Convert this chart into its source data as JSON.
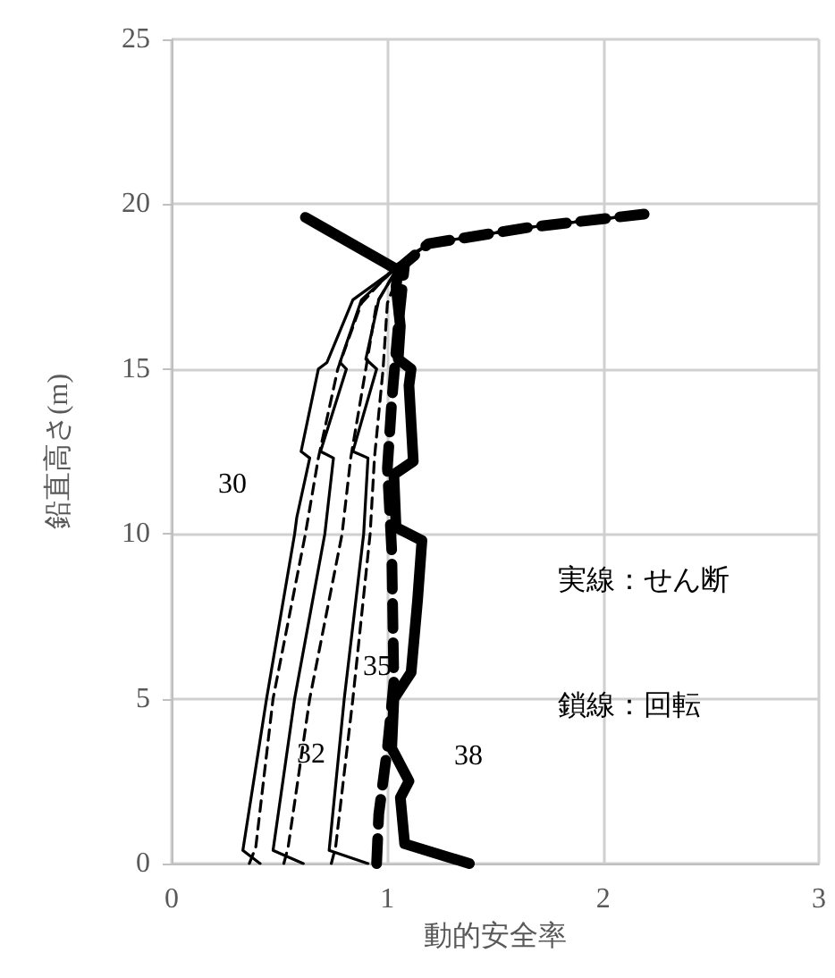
{
  "chart_data": {
    "type": "line",
    "xlabel": "動的安全率",
    "ylabel": "鉛直高さ(m)",
    "xlim": [
      0,
      3
    ],
    "xticks": [
      0,
      1,
      2,
      3
    ],
    "ylim": [
      0,
      25
    ],
    "yticks": [
      0,
      5,
      10,
      15,
      20,
      25
    ],
    "grid": true,
    "marker": "none",
    "series": [
      {
        "color": "#000000",
        "line_style": "solid",
        "x": [
          0.41,
          0.33,
          0.44,
          0.57,
          0.58,
          0.64,
          0.6,
          0.68,
          0.72,
          0.84,
          1.03,
          0.62
        ],
        "values": [
          0,
          0.4,
          5,
          10,
          10.5,
          12.3,
          12.5,
          15,
          15.2,
          17.1,
          18,
          19.6
        ]
      },
      {
        "color": "#000000",
        "line_style": "solid",
        "x": [
          0.61,
          0.47,
          0.57,
          0.71,
          0.75,
          0.69,
          0.81,
          0.78,
          0.88,
          1.03,
          0.62
        ],
        "values": [
          0,
          0.4,
          5,
          10,
          12.3,
          12.5,
          15,
          15.2,
          17.1,
          18,
          19.6
        ]
      },
      {
        "color": "#000000",
        "line_style": "solid",
        "x": [
          0.91,
          0.73,
          0.8,
          0.89,
          0.91,
          0.84,
          0.95,
          0.9,
          0.96,
          1.04,
          0.62
        ],
        "values": [
          0,
          0.4,
          5,
          10,
          12.3,
          12.5,
          15,
          15.3,
          17.1,
          18,
          19.6
        ]
      },
      {
        "color": "#000000",
        "line_style": "solid",
        "x": [
          1.38,
          1.08,
          1.06,
          1.1,
          1.02,
          1.03,
          1.11,
          1.14,
          1.16,
          1.04,
          1.03,
          1.12,
          1.1,
          1.11,
          1.05,
          1.06,
          1.04,
          1.05,
          0.62
        ],
        "values": [
          0,
          0.6,
          2,
          2.5,
          3.5,
          5,
          5.8,
          8,
          9.8,
          10.2,
          11.8,
          12.2,
          14.5,
          15,
          15.3,
          16.3,
          17.5,
          18,
          19.6
        ]
      },
      {
        "color": "#000000",
        "line_style": "dashed",
        "x": [
          0.36,
          0.39,
          0.47,
          0.62,
          0.68,
          0.77,
          0.88,
          1.05,
          1.19,
          1.66,
          2.19
        ],
        "values": [
          0,
          0.5,
          5,
          10,
          12.3,
          15,
          17,
          18.2,
          18.8,
          19.3,
          19.7
        ]
      },
      {
        "color": "#000000",
        "line_style": "dashed",
        "x": [
          0.52,
          0.54,
          0.64,
          0.79,
          0.83,
          0.9,
          0.95,
          1.06,
          1.19,
          1.66,
          2.19
        ],
        "values": [
          0,
          0.5,
          5,
          10,
          12.3,
          15,
          17,
          18.2,
          18.8,
          19.3,
          19.7
        ]
      },
      {
        "color": "#000000",
        "line_style": "dashed",
        "x": [
          0.74,
          0.76,
          0.84,
          0.92,
          0.94,
          0.98,
          1.0,
          1.07,
          1.19,
          1.66,
          2.19
        ],
        "values": [
          0,
          0.5,
          5,
          10,
          12.3,
          15,
          17,
          18.2,
          18.8,
          19.3,
          19.7
        ]
      },
      {
        "color": "#000000",
        "line_style": "dashed",
        "x": [
          0.95,
          0.96,
          1.0,
          1.03,
          1.02,
          1.0,
          1.02,
          1.05,
          1.08,
          1.19,
          1.66,
          2.19
        ],
        "values": [
          0,
          1.5,
          3.5,
          5.5,
          9.5,
          12,
          14,
          16.3,
          18.2,
          18.8,
          19.3,
          19.7
        ]
      }
    ],
    "annotations": [
      "30",
      "32",
      "35",
      "38",
      "実線：せん断",
      "鎖線：回転"
    ]
  }
}
